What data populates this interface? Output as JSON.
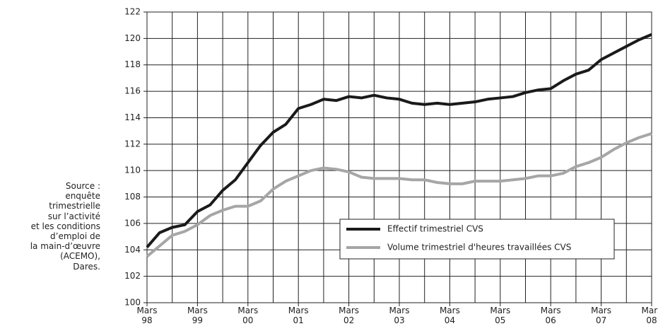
{
  "chart_data": {
    "type": "line",
    "source_lines": [
      "Source :",
      "enquête",
      "trimestrielle",
      "sur l’activité",
      "et les conditions",
      "d’emploi de",
      "la main-d’œuvre",
      "(ACEMO),",
      "Dares."
    ],
    "categories": [
      "Mars 98",
      null,
      null,
      null,
      "Mars 99",
      null,
      null,
      null,
      "Mars 00",
      null,
      null,
      null,
      "Mars 01",
      null,
      null,
      null,
      "Mars 02",
      null,
      null,
      null,
      "Mars 03",
      null,
      null,
      null,
      "Mars 04",
      null,
      null,
      null,
      "Mars 05",
      null,
      null,
      null,
      "Mars 06",
      null,
      null,
      null,
      "Mars 07",
      null,
      null,
      null,
      "Mars 08"
    ],
    "series": [
      {
        "name": "Effectif trimestriel CVS",
        "color": "#1a1a1a",
        "values": [
          104.2,
          105.3,
          105.7,
          105.9,
          106.9,
          107.4,
          108.5,
          109.3,
          110.6,
          111.9,
          112.9,
          113.5,
          114.7,
          115.0,
          115.4,
          115.3,
          115.6,
          115.5,
          115.7,
          115.5,
          115.4,
          115.1,
          115.0,
          115.1,
          115.0,
          115.1,
          115.2,
          115.4,
          115.5,
          115.6,
          115.9,
          116.1,
          116.2,
          116.8,
          117.3,
          117.6,
          118.4,
          118.9,
          119.4,
          119.9,
          120.3
        ]
      },
      {
        "name": "Volume trimestriel d'heures travaillées CVS",
        "color": "#a6a6a6",
        "values": [
          103.5,
          104.3,
          105.1,
          105.4,
          105.9,
          106.6,
          107.0,
          107.3,
          107.3,
          107.7,
          108.6,
          109.2,
          109.6,
          110.0,
          110.2,
          110.1,
          109.9,
          109.5,
          109.4,
          109.4,
          109.4,
          109.3,
          109.3,
          109.1,
          109.0,
          109.0,
          109.2,
          109.2,
          109.2,
          109.3,
          109.4,
          109.6,
          109.6,
          109.8,
          110.3,
          110.6,
          111.0,
          111.6,
          112.1,
          112.5,
          112.8
        ]
      }
    ],
    "ylim": [
      100,
      122
    ],
    "yticks": [
      100,
      102,
      104,
      106,
      108,
      110,
      112,
      114,
      116,
      118,
      120,
      122
    ],
    "grid": true
  }
}
